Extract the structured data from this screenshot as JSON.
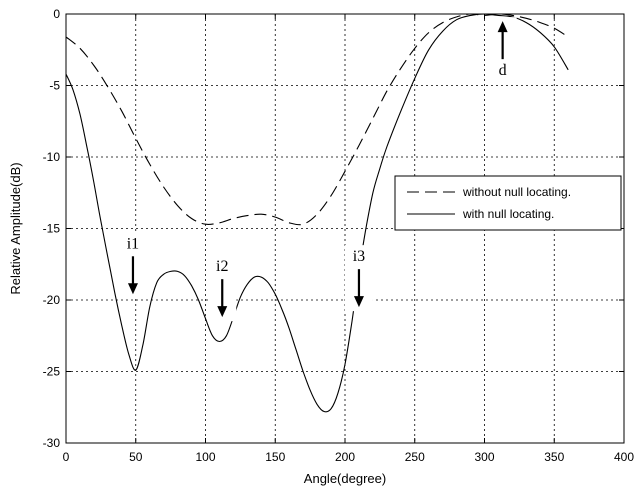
{
  "chart_data": {
    "type": "line",
    "xlabel": "Angle(degree)",
    "ylabel": "Relative Amplitude(dB)",
    "xlim": [
      0,
      400
    ],
    "ylim": [
      -30,
      0
    ],
    "xticks": [
      0,
      50,
      100,
      150,
      200,
      250,
      300,
      350,
      400
    ],
    "yticks": [
      0,
      -5,
      -10,
      -15,
      -20,
      -25,
      -30
    ],
    "grid": true,
    "legend_position": "right",
    "series": [
      {
        "name": "without null locating.",
        "style": "dashed",
        "x": [
          0,
          10,
          20,
          30,
          40,
          50,
          60,
          70,
          80,
          90,
          100,
          110,
          120,
          130,
          140,
          150,
          160,
          170,
          180,
          190,
          200,
          210,
          220,
          230,
          240,
          250,
          260,
          270,
          280,
          290,
          300,
          310,
          320,
          330,
          340,
          350,
          360
        ],
        "y": [
          -1.6,
          -2.4,
          -3.6,
          -5.1,
          -6.8,
          -8.7,
          -10.5,
          -12.1,
          -13.4,
          -14.3,
          -14.7,
          -14.6,
          -14.3,
          -14.1,
          -14.0,
          -14.2,
          -14.6,
          -14.7,
          -14.0,
          -12.7,
          -11.0,
          -9.2,
          -7.3,
          -5.4,
          -3.8,
          -2.4,
          -1.3,
          -0.6,
          -0.2,
          0.0,
          -0.1,
          0.0,
          -0.1,
          -0.3,
          -0.6,
          -1.0,
          -1.6
        ]
      },
      {
        "name": "with null locating.",
        "style": "solid",
        "x": [
          0,
          5,
          10,
          15,
          20,
          25,
          30,
          35,
          40,
          45,
          50,
          55,
          60,
          65,
          70,
          75,
          80,
          85,
          90,
          95,
          100,
          105,
          110,
          115,
          120,
          125,
          130,
          135,
          140,
          145,
          150,
          155,
          160,
          165,
          170,
          175,
          180,
          185,
          190,
          195,
          200,
          205,
          210,
          215,
          220,
          225,
          230,
          240,
          250,
          260,
          270,
          280,
          290,
          300,
          310,
          320,
          330,
          340,
          350,
          360
        ],
        "y": [
          -4.2,
          -5.3,
          -7.0,
          -9.3,
          -11.8,
          -14.5,
          -17.0,
          -19.5,
          -21.8,
          -23.8,
          -24.9,
          -23.2,
          -20.5,
          -18.8,
          -18.2,
          -18.0,
          -18.0,
          -18.3,
          -19.0,
          -20.0,
          -21.3,
          -22.5,
          -22.9,
          -22.5,
          -21.2,
          -19.8,
          -18.9,
          -18.4,
          -18.4,
          -18.8,
          -19.6,
          -20.7,
          -22.0,
          -23.5,
          -25.0,
          -26.3,
          -27.3,
          -27.8,
          -27.6,
          -26.5,
          -24.5,
          -21.5,
          -18.0,
          -15.0,
          -12.5,
          -10.8,
          -9.3,
          -6.8,
          -4.5,
          -2.5,
          -1.2,
          -0.4,
          -0.1,
          0.0,
          -0.1,
          -0.2,
          -0.6,
          -1.3,
          -2.3,
          -3.9
        ]
      }
    ],
    "annotations": [
      {
        "label": "i1",
        "x": 48,
        "y": -19.6,
        "direction": "down"
      },
      {
        "label": "i2",
        "x": 112,
        "y": -21.2,
        "direction": "down"
      },
      {
        "label": "i3",
        "x": 210,
        "y": -20.5,
        "direction": "down"
      },
      {
        "label": "d",
        "x": 313,
        "y": -0.5,
        "direction": "up"
      }
    ]
  }
}
